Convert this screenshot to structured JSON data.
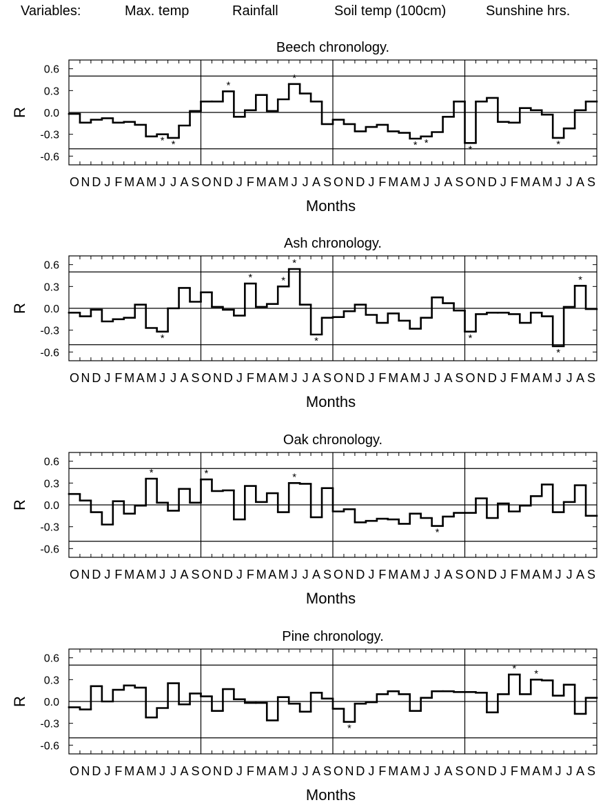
{
  "header": {
    "label": "Variables:",
    "variables": [
      "Max. temp",
      "Rainfall",
      "Soil temp (100cm)",
      "Sunshine hrs."
    ]
  },
  "chart_data": [
    {
      "type": "line",
      "step": true,
      "title": "Beech chronology.",
      "ylabel": "R",
      "xlabel": "Months",
      "ylim": [
        -0.72,
        0.72
      ],
      "yticks": [
        0.6,
        0.3,
        0.0,
        -0.3,
        -0.6
      ],
      "ytick_labels": [
        "0.6",
        "0.3",
        "0.0",
        "-0.3",
        "-0.6"
      ],
      "significance_lines": [
        0.5,
        -0.5
      ],
      "month_ticks": [
        "O",
        "N",
        "D",
        "J",
        "F",
        "M",
        "A",
        "M",
        "J",
        "J",
        "A",
        "S"
      ],
      "groups": [
        "Max. temp",
        "Rainfall",
        "Soil temp (100cm)",
        "Sunshine hrs."
      ],
      "values": [
        -0.02,
        -0.14,
        -0.1,
        -0.08,
        -0.14,
        -0.13,
        -0.17,
        -0.33,
        -0.3,
        -0.35,
        -0.18,
        0.02,
        0.15,
        0.15,
        0.29,
        -0.06,
        0.03,
        0.24,
        0.02,
        0.18,
        0.39,
        0.26,
        0.15,
        -0.16,
        -0.1,
        -0.16,
        -0.26,
        -0.2,
        -0.17,
        -0.26,
        -0.28,
        -0.36,
        -0.33,
        -0.27,
        -0.06,
        0.15,
        -0.42,
        0.15,
        0.2,
        -0.13,
        -0.14,
        0.06,
        0.03,
        -0.03,
        -0.35,
        -0.22,
        0.03,
        0.15
      ],
      "significant": [
        8,
        9,
        14,
        20,
        31,
        32,
        36,
        44
      ]
    },
    {
      "type": "line",
      "step": true,
      "title": "Ash chronology.",
      "ylabel": "R",
      "xlabel": "Months",
      "ylim": [
        -0.72,
        0.72
      ],
      "yticks": [
        0.6,
        0.3,
        0.0,
        -0.3,
        -0.6
      ],
      "ytick_labels": [
        "0.6",
        "0.3",
        "0.0",
        "-0.3",
        "-0.6"
      ],
      "significance_lines": [
        0.5,
        -0.5
      ],
      "month_ticks": [
        "O",
        "N",
        "D",
        "J",
        "F",
        "M",
        "A",
        "M",
        "J",
        "J",
        "A",
        "S"
      ],
      "groups": [
        "Max. temp",
        "Rainfall",
        "Soil temp (100cm)",
        "Sunshine hrs."
      ],
      "values": [
        -0.06,
        -0.11,
        -0.02,
        -0.18,
        -0.15,
        -0.13,
        0.05,
        -0.27,
        -0.32,
        0.0,
        0.28,
        0.09,
        0.22,
        0.02,
        -0.02,
        -0.1,
        0.34,
        0.02,
        0.06,
        0.3,
        0.54,
        0.05,
        -0.36,
        -0.13,
        -0.12,
        -0.04,
        0.05,
        -0.09,
        -0.2,
        -0.07,
        -0.17,
        -0.28,
        -0.13,
        0.15,
        0.07,
        -0.03,
        -0.32,
        -0.08,
        -0.06,
        -0.06,
        -0.08,
        -0.2,
        -0.06,
        -0.11,
        -0.52,
        0.02,
        0.31,
        -0.01
      ],
      "significant": [
        8,
        16,
        19,
        20,
        22,
        36,
        44,
        46
      ]
    },
    {
      "type": "line",
      "step": true,
      "title": "Oak chronology.",
      "ylabel": "R",
      "xlabel": "Months",
      "ylim": [
        -0.72,
        0.72
      ],
      "yticks": [
        0.6,
        0.3,
        0.0,
        -0.3,
        -0.6
      ],
      "ytick_labels": [
        "0.6",
        "0.3",
        "0.0",
        "-0.3",
        "-0.6"
      ],
      "significance_lines": [
        0.5,
        -0.5
      ],
      "month_ticks": [
        "O",
        "N",
        "D",
        "J",
        "F",
        "M",
        "A",
        "M",
        "J",
        "J",
        "A",
        "S"
      ],
      "groups": [
        "Max. temp",
        "Rainfall",
        "Soil temp (100cm)",
        "Sunshine hrs."
      ],
      "values": [
        0.15,
        0.06,
        -0.1,
        -0.27,
        0.05,
        -0.12,
        -0.01,
        0.36,
        0.03,
        -0.08,
        0.22,
        0.03,
        0.35,
        0.19,
        0.2,
        -0.2,
        0.26,
        0.04,
        0.16,
        -0.1,
        0.3,
        0.29,
        -0.17,
        0.23,
        -0.09,
        -0.06,
        -0.24,
        -0.22,
        -0.19,
        -0.2,
        -0.26,
        -0.12,
        -0.18,
        -0.29,
        -0.16,
        -0.11,
        -0.11,
        0.09,
        -0.18,
        0.02,
        -0.09,
        -0.01,
        0.12,
        0.28,
        -0.1,
        0.04,
        0.27,
        -0.15
      ],
      "significant": [
        7,
        12,
        20,
        33
      ]
    },
    {
      "type": "line",
      "step": true,
      "title": "Pine chronology.",
      "ylabel": "R",
      "xlabel": "Months",
      "ylim": [
        -0.72,
        0.72
      ],
      "yticks": [
        0.6,
        0.3,
        0.0,
        -0.3,
        -0.6
      ],
      "ytick_labels": [
        "0.6",
        "0.3",
        "0.0",
        "-0.3",
        "-0.6"
      ],
      "significance_lines": [
        0.5,
        -0.5
      ],
      "month_ticks": [
        "O",
        "N",
        "D",
        "J",
        "F",
        "M",
        "A",
        "M",
        "J",
        "J",
        "A",
        "S"
      ],
      "groups": [
        "Max. temp",
        "Rainfall",
        "Soil temp (100cm)",
        "Sunshine hrs."
      ],
      "values": [
        -0.08,
        -0.11,
        0.21,
        0.0,
        0.16,
        0.22,
        0.19,
        -0.22,
        -0.09,
        0.25,
        -0.04,
        0.11,
        0.07,
        -0.13,
        0.17,
        0.03,
        -0.02,
        -0.02,
        -0.26,
        0.06,
        -0.03,
        -0.14,
        0.12,
        0.04,
        -0.1,
        -0.28,
        -0.03,
        -0.01,
        0.1,
        0.14,
        0.1,
        -0.13,
        0.05,
        0.14,
        0.14,
        0.13,
        0.13,
        0.12,
        -0.15,
        0.1,
        0.37,
        0.1,
        0.3,
        0.29,
        0.08,
        0.23,
        -0.17,
        0.05
      ],
      "significant": [
        25,
        40,
        42
      ]
    }
  ]
}
